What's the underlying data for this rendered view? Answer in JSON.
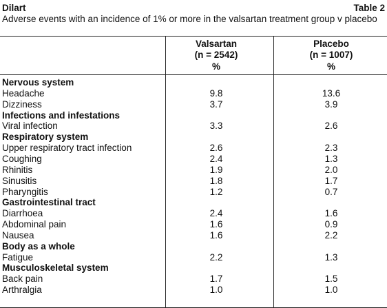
{
  "header": {
    "title": "Dilart",
    "table_label": "Table 2"
  },
  "caption": "Adverse events with an incidence of 1% or more in the valsartan treatment group v placebo",
  "columns": [
    {
      "name": "Valsartan",
      "n": "(n = 2542)",
      "unit": "%"
    },
    {
      "name": "Placebo",
      "n": "(n = 1007)",
      "unit": "%"
    }
  ],
  "groups": [
    {
      "name": "Nervous system",
      "rows": [
        {
          "label": "Headache",
          "values": [
            "9.8",
            "13.6"
          ]
        },
        {
          "label": "Dizziness",
          "values": [
            "3.7",
            "3.9"
          ]
        }
      ]
    },
    {
      "name": "Infections and infestations",
      "rows": [
        {
          "label": "Viral infection",
          "values": [
            "3.3",
            "2.6"
          ]
        }
      ]
    },
    {
      "name": "Respiratory system",
      "rows": [
        {
          "label": "Upper respiratory tract infection",
          "values": [
            "2.6",
            "2.3"
          ]
        },
        {
          "label": "Coughing",
          "values": [
            "2.4",
            "1.3"
          ]
        },
        {
          "label": "Rhinitis",
          "values": [
            "1.9",
            "2.0"
          ]
        },
        {
          "label": "Sinusitis",
          "values": [
            "1.8",
            "1.7"
          ]
        },
        {
          "label": "Pharyngitis",
          "values": [
            "1.2",
            "0.7"
          ]
        }
      ]
    },
    {
      "name": "Gastrointestinal tract",
      "rows": [
        {
          "label": "Diarrhoea",
          "values": [
            "2.4",
            "1.6"
          ]
        },
        {
          "label": "Abdominal pain",
          "values": [
            "1.6",
            "0.9"
          ]
        },
        {
          "label": "Nausea",
          "values": [
            "1.6",
            "2.2"
          ]
        }
      ]
    },
    {
      "name": "Body as a whole",
      "rows": [
        {
          "label": "Fatigue",
          "values": [
            "2.2",
            "1.3"
          ]
        }
      ]
    },
    {
      "name": "Musculoskeletal system",
      "rows": [
        {
          "label": "Back pain",
          "values": [
            "1.7",
            "1.5"
          ]
        },
        {
          "label": "Arthralgia",
          "values": [
            "1.0",
            "1.0"
          ]
        }
      ]
    }
  ]
}
